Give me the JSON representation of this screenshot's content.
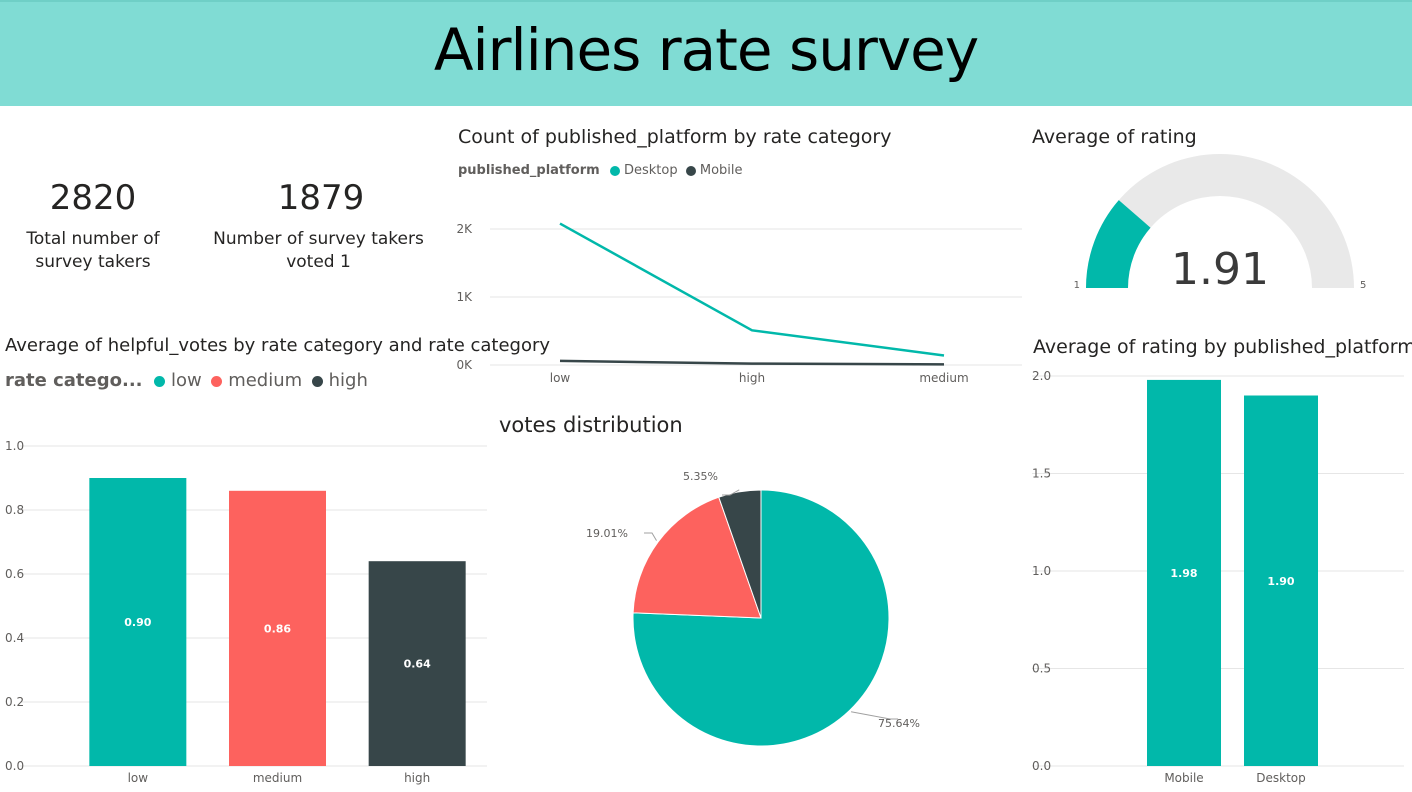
{
  "header": {
    "title": "Airlines rate survey"
  },
  "colors": {
    "teal": "#01b8aa",
    "red": "#fd625e",
    "dark": "#374649",
    "gaugeTrack": "#e9e9e9",
    "banner": "#80dcd4"
  },
  "kpis": [
    {
      "value": "2820",
      "label_line1": "Total number of",
      "label_line2": "survey takers"
    },
    {
      "value": "1879",
      "label_line1": "Number of survey takers",
      "label_line2": "voted 1"
    }
  ],
  "chart_data": [
    {
      "id": "helpful-votes",
      "type": "bar",
      "title": "Average of helpful_votes by rate category and rate category",
      "legend": {
        "title": "rate catego...",
        "items": [
          "low",
          "medium",
          "high"
        ],
        "position": "top-left"
      },
      "categories": [
        "low",
        "medium",
        "high"
      ],
      "values": [
        0.9,
        0.86,
        0.64
      ],
      "data_labels": [
        "0.90",
        "0.86",
        "0.64"
      ],
      "ylim": [
        0,
        1.0
      ],
      "yticks": [
        "0.0",
        "0.2",
        "0.4",
        "0.6",
        "0.8",
        "1.0"
      ],
      "grid": true
    },
    {
      "id": "platform-count",
      "type": "line",
      "title": "Count of published_platform by rate category",
      "legend": {
        "title": "published_platform",
        "items": [
          "Desktop",
          "Mobile"
        ],
        "position": "top-left"
      },
      "categories": [
        "low",
        "high",
        "medium"
      ],
      "series": [
        {
          "name": "Desktop",
          "values": [
            2080,
            510,
            140
          ]
        },
        {
          "name": "Mobile",
          "values": [
            60,
            20,
            10
          ]
        }
      ],
      "ylim": [
        0,
        2300
      ],
      "yticks": [
        "0K",
        "1K",
        "2K"
      ],
      "grid": true
    },
    {
      "id": "votes-distribution",
      "type": "pie",
      "title": "votes distribution",
      "values": [
        75.64,
        19.01,
        5.35
      ],
      "labels": [
        "75.64%",
        "19.01%",
        "5.35%"
      ]
    },
    {
      "id": "avg-rating-gauge",
      "type": "gauge",
      "title": "Average of rating",
      "value": 1.91,
      "value_label": "1.91",
      "min": 1,
      "max": 5,
      "min_label": "1",
      "max_label": "5"
    },
    {
      "id": "rating-by-platform",
      "type": "bar",
      "title": "Average of rating by published_platform",
      "categories": [
        "Mobile",
        "Desktop"
      ],
      "values": [
        1.98,
        1.9
      ],
      "data_labels": [
        "1.98",
        "1.90"
      ],
      "ylim": [
        0,
        2.0
      ],
      "yticks": [
        "0.0",
        "0.5",
        "1.0",
        "1.5",
        "2.0"
      ],
      "grid": true
    }
  ]
}
